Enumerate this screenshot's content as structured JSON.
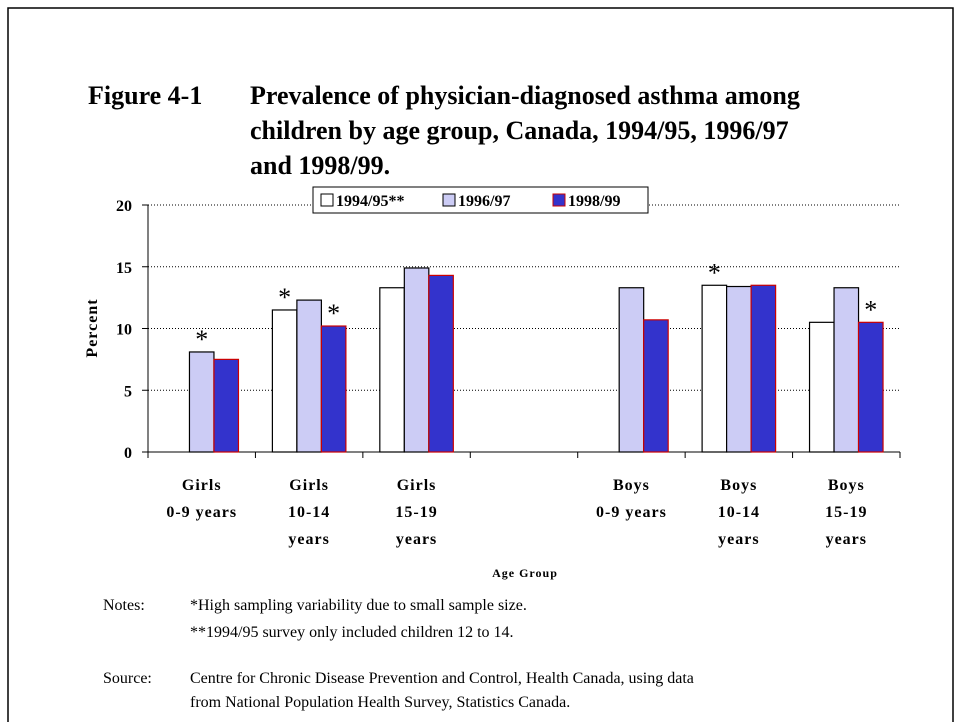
{
  "chart_data": {
    "type": "bar",
    "figure_label": "Figure 4-1",
    "title": [
      "Prevalence of physician-diagnosed asthma among",
      "children by age group, Canada, 1994/95, 1996/97",
      "and 1998/99."
    ],
    "y_label": "Percent",
    "x_label": "Age Group",
    "categories": [
      [
        "Girls",
        "0-9 years"
      ],
      [
        "Girls",
        "10-14",
        "years"
      ],
      [
        "Girls",
        "15-19",
        "years"
      ],
      null,
      [
        "Boys",
        "0-9 years"
      ],
      [
        "Boys",
        "10-14",
        "years"
      ],
      [
        "Boys",
        "15-19",
        "years"
      ]
    ],
    "series": [
      {
        "name": "1994/95**",
        "color": "#ffffff",
        "edge_color": "#000000",
        "values": [
          null,
          11.5,
          13.3,
          null,
          null,
          13.5,
          10.5
        ]
      },
      {
        "name": "1996/97",
        "color": "#ccccf5",
        "edge_color": "#000000",
        "values": [
          8.1,
          12.3,
          14.9,
          null,
          13.3,
          13.4,
          13.3
        ]
      },
      {
        "name": "1998/99",
        "color": "#3333cc",
        "edge_color": "#cc0000",
        "values": [
          7.5,
          10.2,
          14.3,
          null,
          10.7,
          13.5,
          10.5
        ]
      }
    ],
    "annotations": [
      {
        "text": "*",
        "series": 1,
        "index": 0
      },
      {
        "text": "*",
        "series": 0,
        "index": 1
      },
      {
        "text": "*",
        "series": 2,
        "index": 1
      },
      {
        "text": "*",
        "series": 0,
        "index": 5
      },
      {
        "text": "*",
        "series": 2,
        "index": 6
      }
    ],
    "ylim": [
      0,
      20
    ],
    "yticks": [
      0,
      5,
      10,
      15,
      20
    ],
    "grid": true,
    "legend": "top",
    "notes_label": "Notes:",
    "notes": [
      "*High sampling variability due to small sample size.",
      "**1994/95 survey only included children 12 to 14."
    ],
    "source_label": "Source:",
    "source": [
      "Centre for Chronic Disease Prevention and Control, Health Canada, using data",
      "from National Population Health Survey, Statistics Canada."
    ]
  }
}
